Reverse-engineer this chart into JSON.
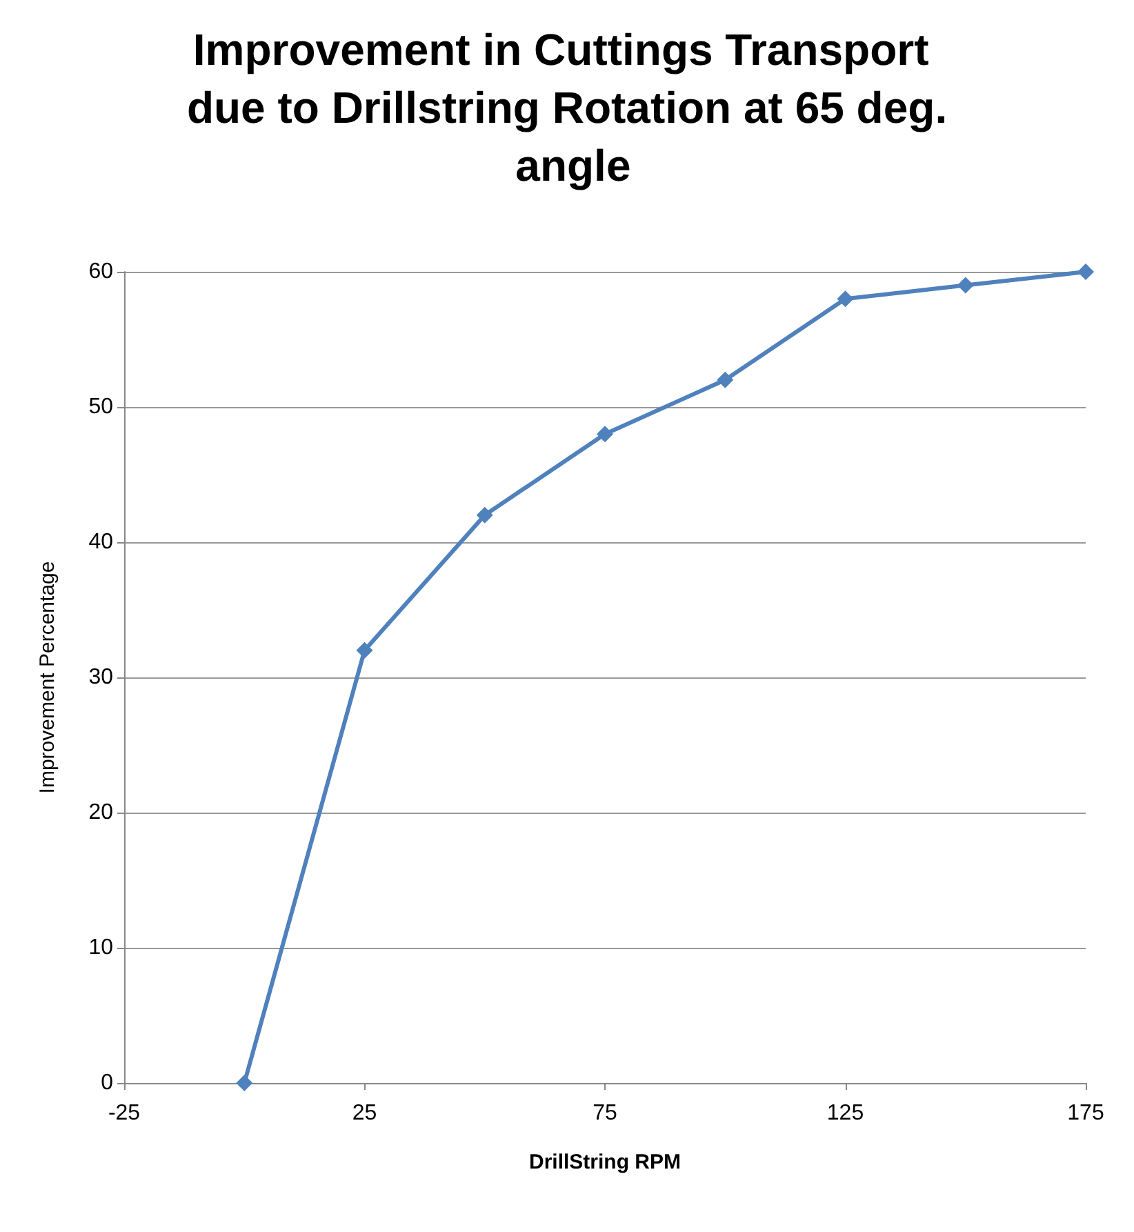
{
  "chart_data": {
    "type": "line",
    "title": "Improvement in Cuttings Transport due to Drillstring Rotation at 65 deg. angle",
    "xlabel": "DrillString RPM",
    "ylabel": "Improvement Percentage",
    "x": [
      0,
      25,
      50,
      75,
      100,
      125,
      150,
      175
    ],
    "series": [
      {
        "color": "#4f81bd",
        "values": [
          0,
          32,
          42,
          48,
          52,
          58,
          59,
          60
        ]
      }
    ],
    "xlim": [
      -25,
      175
    ],
    "xticks": [
      -25,
      25,
      75,
      125,
      175
    ],
    "ylim": [
      0,
      60
    ],
    "yticks": [
      0,
      10,
      20,
      30,
      40,
      50,
      60
    ],
    "grid": "y",
    "marker": "diamond",
    "line_style": "solid"
  }
}
